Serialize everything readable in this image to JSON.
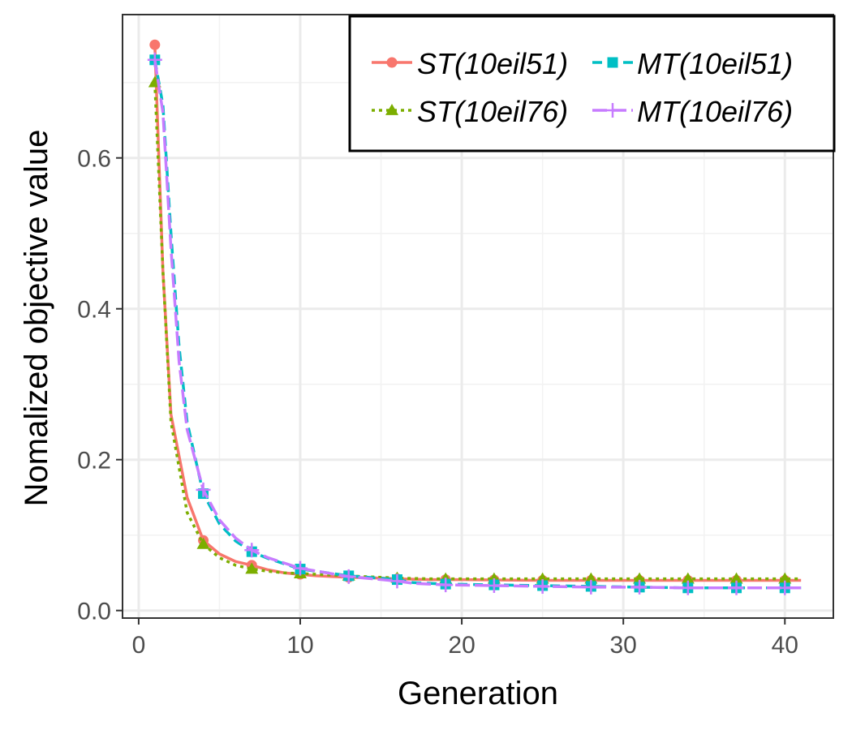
{
  "chart_data": {
    "type": "line",
    "title": "",
    "xlabel": "Generation",
    "ylabel": "Nomalized objective value",
    "xlim": [
      -1,
      43
    ],
    "ylim": [
      -0.01,
      0.79
    ],
    "x_ticks": [
      0,
      10,
      20,
      30,
      40
    ],
    "y_ticks": [
      0.0,
      0.2,
      0.4,
      0.6
    ],
    "x_tick_labels": [
      "0",
      "10",
      "20",
      "30",
      "40"
    ],
    "y_tick_labels": [
      "0.0",
      "0.2",
      "0.4",
      "0.6"
    ],
    "grid": true,
    "legend_position": "top-right",
    "series": [
      {
        "name": "ST(10eil51)",
        "color": "#F8766D",
        "line_style": "solid",
        "marker": "circle",
        "x": [
          1,
          1.5,
          2,
          3,
          4,
          5,
          6,
          7,
          8,
          9,
          10,
          11,
          13,
          15,
          16,
          18,
          20,
          25,
          30,
          35,
          41
        ],
        "y": [
          0.75,
          0.45,
          0.26,
          0.15,
          0.093,
          0.075,
          0.065,
          0.06,
          0.054,
          0.05,
          0.048,
          0.046,
          0.044,
          0.043,
          0.042,
          0.041,
          0.041,
          0.04,
          0.04,
          0.04,
          0.04
        ],
        "marker_x": [
          1,
          4,
          7,
          10,
          13,
          16,
          19,
          22,
          25,
          28,
          31,
          34,
          37,
          40
        ]
      },
      {
        "name": "MT(10eil51)",
        "color": "#00BFC4",
        "line_style": "dashed",
        "marker": "square",
        "x": [
          1,
          1.5,
          2,
          2.5,
          3,
          4,
          5,
          6,
          7,
          8,
          10,
          13,
          16,
          17,
          19,
          22,
          25,
          28,
          31,
          34,
          37,
          41
        ],
        "y": [
          0.73,
          0.67,
          0.5,
          0.35,
          0.25,
          0.155,
          0.115,
          0.092,
          0.078,
          0.069,
          0.055,
          0.046,
          0.041,
          0.037,
          0.035,
          0.034,
          0.033,
          0.032,
          0.031,
          0.03,
          0.03,
          0.03
        ],
        "marker_x": [
          1,
          4,
          7,
          10,
          13,
          16,
          19,
          22,
          25,
          28,
          31,
          34,
          37,
          40
        ]
      },
      {
        "name": "ST(10eil76)",
        "color": "#7CAE00",
        "line_style": "dotted",
        "marker": "triangle",
        "x": [
          1,
          1.5,
          2,
          3,
          4,
          5,
          6,
          7,
          8,
          9,
          10,
          12,
          14,
          16,
          18,
          20,
          25,
          30,
          35,
          41
        ],
        "y": [
          0.7,
          0.45,
          0.25,
          0.13,
          0.088,
          0.07,
          0.06,
          0.055,
          0.052,
          0.05,
          0.049,
          0.047,
          0.045,
          0.043,
          0.042,
          0.042,
          0.042,
          0.042,
          0.042,
          0.042
        ],
        "marker_x": [
          1,
          4,
          7,
          10,
          13,
          16,
          19,
          22,
          25,
          28,
          31,
          34,
          37,
          40
        ]
      },
      {
        "name": "MT(10eil76)",
        "color": "#C77CFF",
        "line_style": "longdash",
        "marker": "plus",
        "x": [
          1,
          1.5,
          2,
          2.5,
          3,
          4,
          5,
          6,
          7,
          8,
          10,
          13,
          16,
          17,
          19,
          22,
          25,
          28,
          31,
          34,
          37,
          41
        ],
        "y": [
          0.73,
          0.66,
          0.48,
          0.33,
          0.24,
          0.16,
          0.12,
          0.096,
          0.08,
          0.07,
          0.056,
          0.045,
          0.039,
          0.036,
          0.034,
          0.033,
          0.032,
          0.031,
          0.031,
          0.03,
          0.03,
          0.03
        ],
        "marker_x": [
          1,
          4,
          7,
          10,
          13,
          16,
          19,
          22,
          25,
          28,
          31,
          34,
          37,
          40
        ]
      }
    ],
    "legend_order": [
      0,
      1,
      2,
      3
    ]
  }
}
